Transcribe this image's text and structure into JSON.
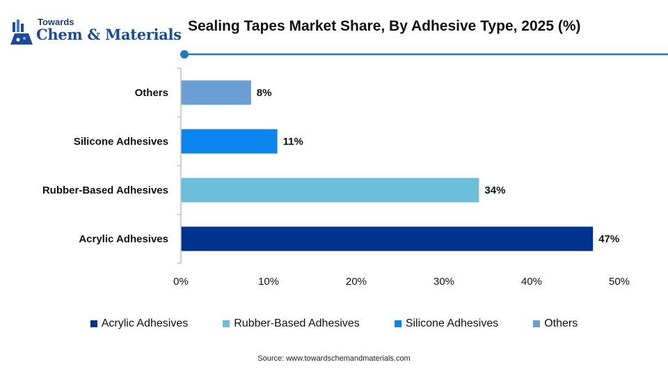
{
  "logo": {
    "small_text": "Towards",
    "big_text": "Chem & Materials"
  },
  "colors": {
    "accent_line": "#1a7fbf",
    "axis": "#bfbfbf"
  },
  "source": "Source: www.towardschemandmaterials.com",
  "chart_data": {
    "type": "bar",
    "orientation": "horizontal",
    "title": "Sealing Tapes Market Share, By Adhesive Type, 2025 (%)",
    "categories": [
      "Acrylic Adhesives",
      "Rubber-Based Adhesives",
      "Silicone Adhesives",
      "Others"
    ],
    "values": [
      47,
      34,
      11,
      8
    ],
    "value_labels": [
      "47%",
      "34%",
      "11%",
      "8%"
    ],
    "colors": [
      "#00338d",
      "#6bbfdb",
      "#0a85f0",
      "#6a9fd6"
    ],
    "xlim": [
      0,
      50
    ],
    "xticks": [
      0,
      10,
      20,
      30,
      40,
      50
    ],
    "xtick_labels": [
      "0%",
      "10%",
      "20%",
      "30%",
      "40%",
      "50%"
    ],
    "grid": false,
    "legend_position": "bottom",
    "legend": [
      "Acrylic Adhesives",
      "Rubber-Based Adhesives",
      "Silicone Adhesives",
      "Others"
    ]
  }
}
